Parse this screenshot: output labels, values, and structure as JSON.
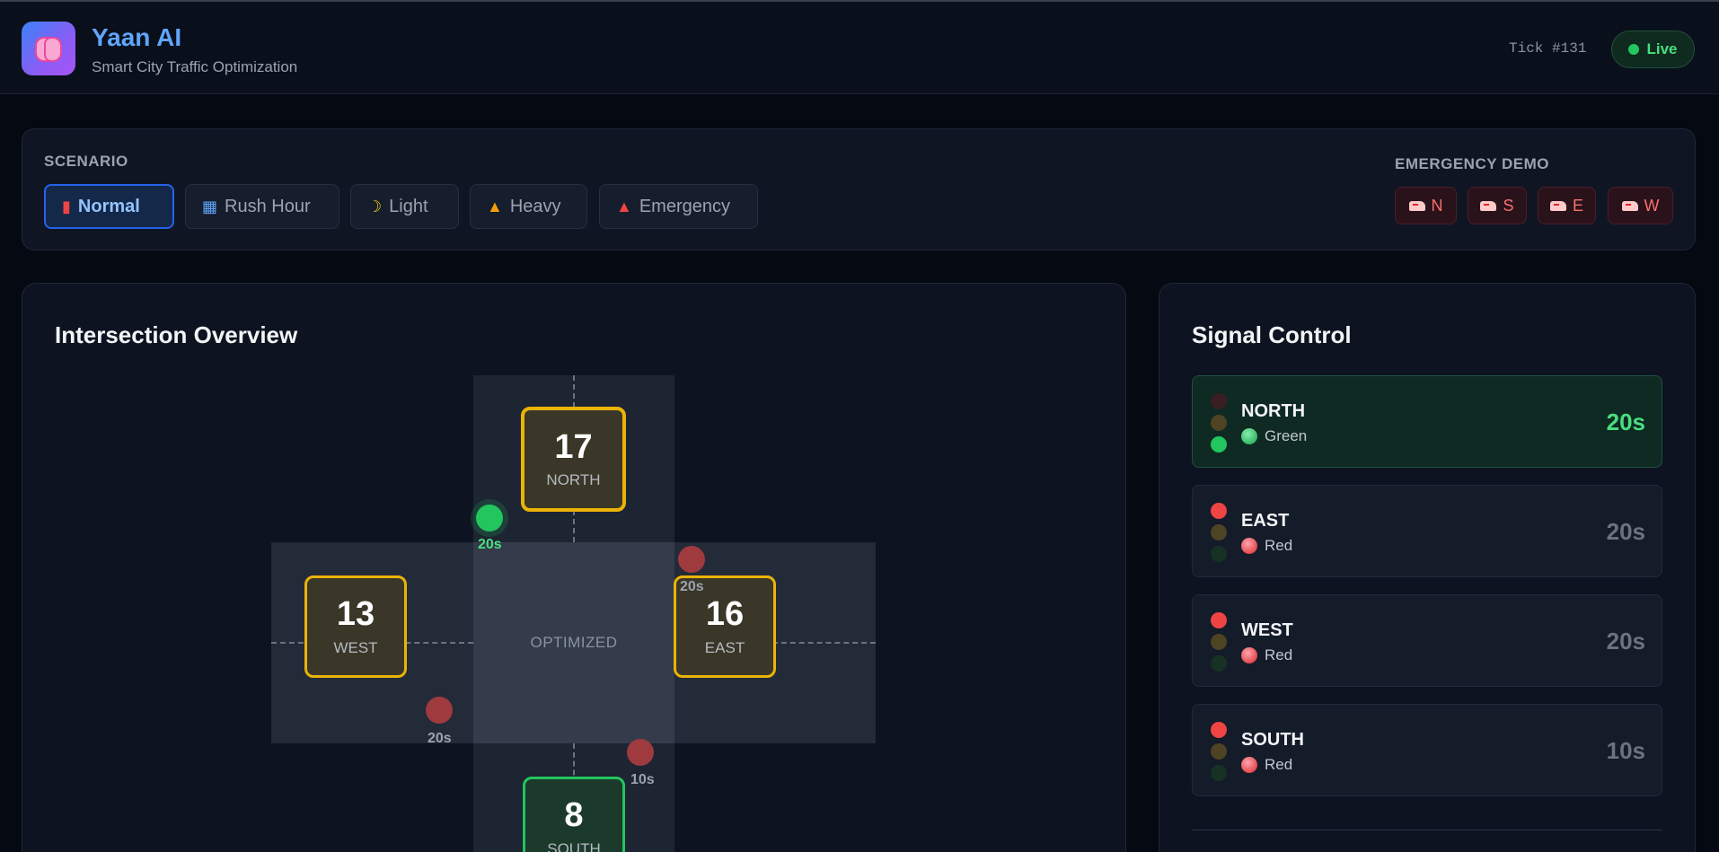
{
  "header": {
    "app_title": "Yaan AI",
    "subtitle": "Smart City Traffic Optimization",
    "tick": "Tick #131",
    "status": "Live",
    "logo_icon": "brain-icon"
  },
  "scenario": {
    "label": "SCENARIO",
    "options": [
      {
        "label": "Normal",
        "icon": "car-icon",
        "active": true
      },
      {
        "label": "Rush Hour",
        "icon": "city-icon",
        "active": false
      },
      {
        "label": "Light",
        "icon": "moon-icon",
        "active": false
      },
      {
        "label": "Heavy",
        "icon": "construction-icon",
        "active": false
      },
      {
        "label": "Emergency",
        "icon": "siren-icon",
        "active": false
      }
    ]
  },
  "emergency_demo": {
    "label": "EMERGENCY DEMO",
    "buttons": [
      {
        "label": "N",
        "icon": "ambulance-icon"
      },
      {
        "label": "S",
        "icon": "ambulance-icon"
      },
      {
        "label": "E",
        "icon": "ambulance-icon"
      },
      {
        "label": "W",
        "icon": "ambulance-icon"
      }
    ]
  },
  "intersection": {
    "title": "Intersection Overview",
    "center_label": "OPTIMIZED",
    "approaches": {
      "north": {
        "count": "17",
        "label": "NORTH"
      },
      "west": {
        "count": "13",
        "label": "WEST"
      },
      "east": {
        "count": "16",
        "label": "EAST"
      },
      "south": {
        "count": "8",
        "label": "SOUTH"
      }
    },
    "signals": {
      "north": {
        "time": "20s",
        "state": "green"
      },
      "east": {
        "time": "20s",
        "state": "red"
      },
      "west": {
        "time": "20s",
        "state": "red"
      },
      "south": {
        "time": "10s",
        "state": "red"
      }
    }
  },
  "signal_control": {
    "title": "Signal Control",
    "rows": [
      {
        "direction": "NORTH",
        "state": "Green",
        "time": "20s"
      },
      {
        "direction": "EAST",
        "state": "Red",
        "time": "20s"
      },
      {
        "direction": "WEST",
        "state": "Red",
        "time": "20s"
      },
      {
        "direction": "SOUTH",
        "state": "Red",
        "time": "10s"
      }
    ]
  },
  "colors": {
    "accent": "#3b82f6",
    "green": "#22c55e",
    "red": "#ef4444",
    "yellow": "#eab308",
    "background": "#050912"
  }
}
